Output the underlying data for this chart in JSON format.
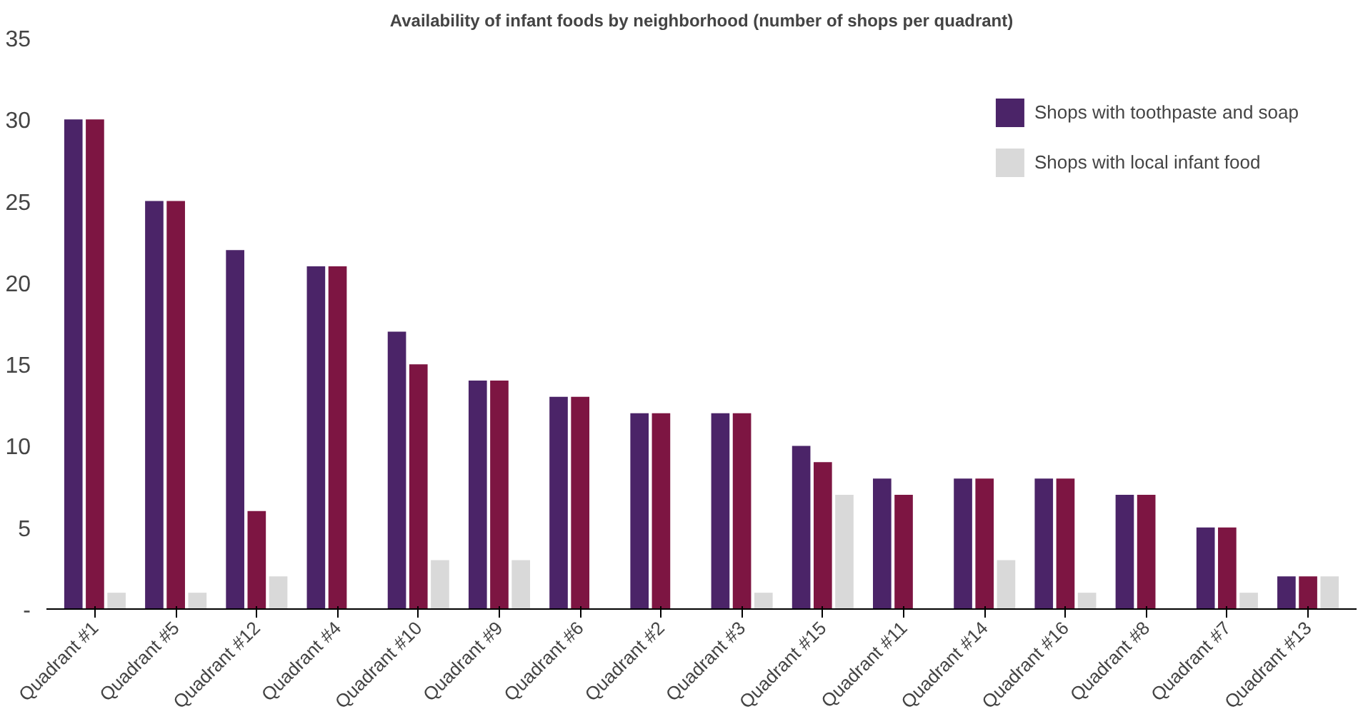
{
  "chart_data": {
    "type": "bar",
    "title": "Availability of infant foods by neighborhood (number of shops per quadrant)",
    "categories": [
      "Quadrant #1",
      "Quadrant #5",
      "Quadrant #12",
      "Quadrant #4",
      "Quadrant #10",
      "Quadrant #9",
      "Quadrant #6",
      "Quadrant #2",
      "Quadrant #3",
      "Quadrant #15",
      "Quadrant #11",
      "Quadrant #14",
      "Quadrant #16",
      "Quadrant #8",
      "Quadrant #7",
      "Quadrant #13"
    ],
    "series": [
      {
        "name": "Shops with toothpaste and soap",
        "color": "#4b2468",
        "values": [
          30,
          25,
          22,
          21,
          17,
          14,
          13,
          12,
          12,
          10,
          8,
          8,
          8,
          7,
          5,
          2
        ]
      },
      {
        "color": "#7d1542",
        "values": [
          30,
          25,
          6,
          21,
          15,
          14,
          13,
          12,
          12,
          9,
          7,
          8,
          8,
          7,
          5,
          2
        ]
      },
      {
        "name": "Shops with local infant food",
        "color": "#d9d9d9",
        "values": [
          1,
          1,
          2,
          0,
          3,
          3,
          0,
          0,
          1,
          7,
          0,
          3,
          1,
          0,
          1,
          2
        ]
      }
    ],
    "ylim": [
      0,
      35
    ],
    "yticks": [
      {
        "value": 0,
        "label": "-"
      },
      5,
      10,
      15,
      20,
      25,
      30,
      35
    ],
    "grid": false,
    "legend": "top right"
  }
}
